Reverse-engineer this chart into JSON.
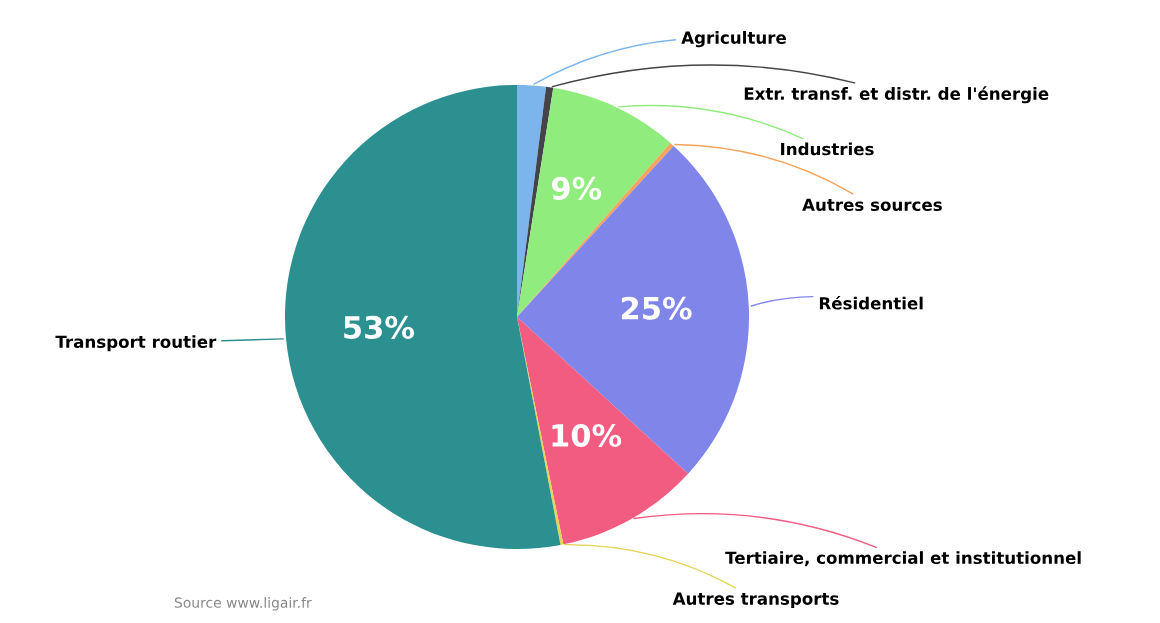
{
  "chart_data": {
    "type": "pie",
    "categories": [
      "Agriculture",
      "Extr. transf. et distr. de l'énergie",
      "Industries",
      "Autres sources",
      "Résidentiel",
      "Tertiaire, commercial et institutionnel",
      "Autres transports",
      "Transport routier"
    ],
    "values": [
      2,
      0.5,
      9,
      0.3,
      25,
      10,
      0.2,
      53
    ],
    "colors": [
      "#7cb5ec",
      "#434348",
      "#90ed7d",
      "#f7a35c",
      "#8085e9",
      "#f15c80",
      "#e4d354",
      "#2b908f"
    ],
    "value_labels": [
      null,
      null,
      "9%",
      null,
      "25%",
      "10%",
      null,
      "53%"
    ],
    "annotations": [
      "Source www.ligair.fr"
    ]
  }
}
